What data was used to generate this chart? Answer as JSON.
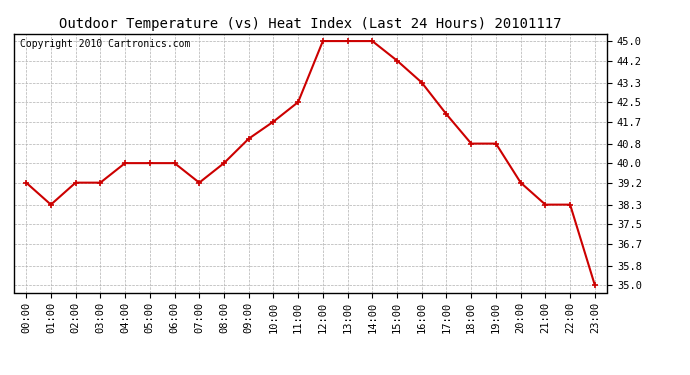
{
  "title": "Outdoor Temperature (vs) Heat Index (Last 24 Hours) 20101117",
  "copyright": "Copyright 2010 Cartronics.com",
  "line_color": "#cc0000",
  "marker": "+",
  "marker_color": "#cc0000",
  "background_color": "#ffffff",
  "grid_color": "#b0b0b0",
  "hours": [
    "00:00",
    "01:00",
    "02:00",
    "03:00",
    "04:00",
    "05:00",
    "06:00",
    "07:00",
    "08:00",
    "09:00",
    "10:00",
    "11:00",
    "12:00",
    "13:00",
    "14:00",
    "15:00",
    "16:00",
    "17:00",
    "18:00",
    "19:00",
    "20:00",
    "21:00",
    "22:00",
    "23:00"
  ],
  "values": [
    39.2,
    38.3,
    39.2,
    39.2,
    40.0,
    40.0,
    40.0,
    39.2,
    40.0,
    41.0,
    41.7,
    42.5,
    45.0,
    45.0,
    45.0,
    44.2,
    43.3,
    42.0,
    40.8,
    40.8,
    39.2,
    38.3,
    38.3,
    35.0
  ],
  "yticks": [
    35.0,
    35.8,
    36.7,
    37.5,
    38.3,
    39.2,
    40.0,
    40.8,
    41.7,
    42.5,
    43.3,
    44.2,
    45.0
  ],
  "ylim": [
    34.7,
    45.3
  ],
  "title_fontsize": 10,
  "copyright_fontsize": 7,
  "tick_fontsize": 7.5,
  "line_width": 1.5,
  "marker_size": 4
}
